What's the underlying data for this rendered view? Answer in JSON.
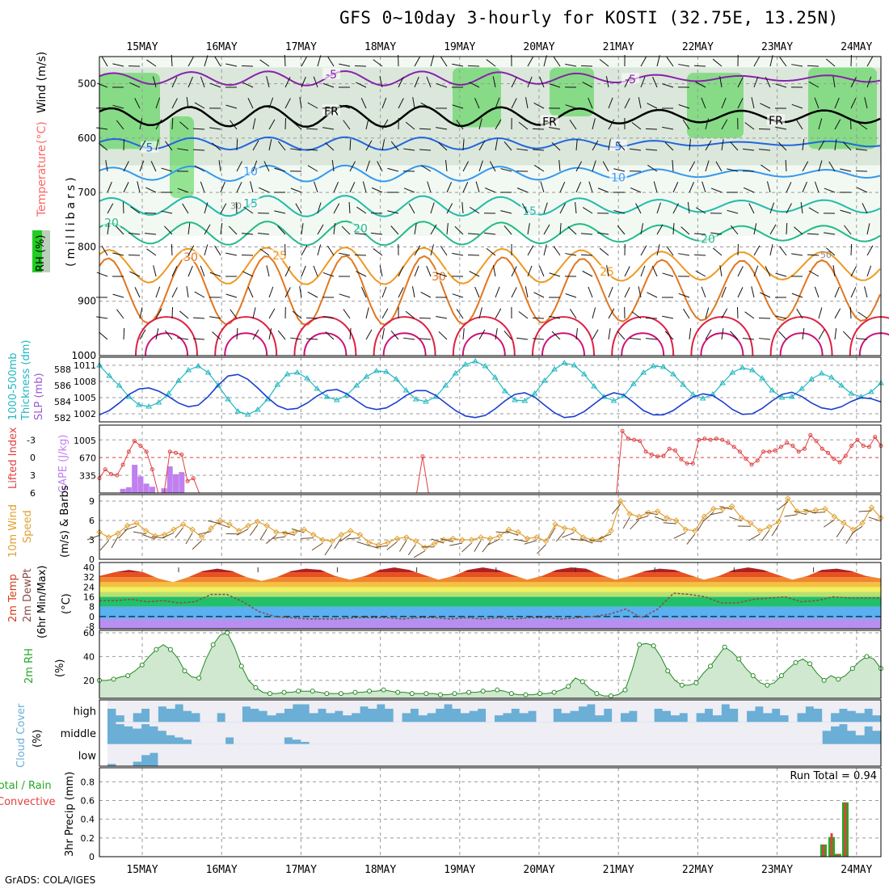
{
  "title": "GFS 0~10day 3-hourly for KOSTI (32.75E, 13.25N)",
  "credit": "GrADS: COLA/IGES",
  "run_total_label": "Run Total = 0.94",
  "dates": [
    "15MAY",
    "16MAY",
    "17MAY",
    "18MAY",
    "19MAY",
    "20MAY",
    "21MAY",
    "22MAY",
    "23MAY",
    "24MAY"
  ],
  "colors": {
    "grid": "#9a9a9a",
    "rh_green": "#22cc22",
    "thickness": "#22b8c0",
    "slp": "#1a3fd0",
    "lifted": "#e04040",
    "cape": "#c080f0",
    "wind_speed": "#e0a030",
    "cloud": "#6baed6",
    "precip_total": "#22aa22",
    "precip_conv": "#e04040"
  },
  "panel_labels": {
    "upper": {
      "rh": "RH (%)",
      "temp": "Temperature",
      "tempunit": "(°C)",
      "wind": "Wind (m/s)",
      "mb": "(millibars)"
    },
    "slp": {
      "a": "1000-500mb",
      "b": "Thickness (dm)",
      "c": "SLP (mb)"
    },
    "cape": {
      "a": "Lifted Index",
      "b": "CAPE (J/kg)"
    },
    "wind10": {
      "a": "10m Wind",
      "b": "Speed",
      "c": "(m/s) & Barbs"
    },
    "temp2m": {
      "a": "2m Temp",
      "b": "2m DewPt",
      "c": "(6hr Min/Max)",
      "unit": "(°C)"
    },
    "rh2m": {
      "a": "2m RH",
      "unit": "(%)"
    },
    "cloud": {
      "a": "Cloud Cover",
      "unit": "(%)"
    },
    "precip": {
      "a": "Total / Rain",
      "b": "Convective",
      "c": "3hr Precip (mm)"
    }
  },
  "chart_data": [
    {
      "type": "heatmap",
      "name": "upper-air cross-section",
      "y_ticks": [
        500,
        600,
        700,
        800,
        900,
        1000
      ],
      "ylim": [
        1000,
        450
      ],
      "temperature_contour_labels": [
        "-5",
        "FR",
        "5",
        "10",
        "15",
        "20",
        "25",
        "30"
      ],
      "rh_labels": [
        "30",
        "50"
      ]
    },
    {
      "type": "line",
      "name": "thickness-slp",
      "thickness_ticks": [
        582,
        584,
        586,
        588
      ],
      "slp_ticks": [
        1002,
        1005,
        1008,
        1011
      ],
      "series": [
        {
          "name": "1000-500mb Thickness (dm)",
          "values": [
            588.5,
            587.2,
            586.0,
            584.6,
            583.6,
            583.4,
            583.9,
            585.0,
            586.6,
            587.9,
            588.4,
            587.6,
            586.0,
            584.3,
            582.8,
            582.4,
            583.0,
            584.3,
            586.1,
            587.4,
            587.6,
            586.9,
            585.6,
            584.6,
            584.2,
            584.8,
            586.0,
            587.1,
            587.8,
            587.7,
            586.8,
            585.4,
            584.3,
            584.0,
            584.6,
            586.0,
            587.5,
            588.6,
            589.0,
            588.4,
            587.0,
            585.3,
            584.2,
            584.1,
            585.0,
            586.6,
            588.0,
            588.8,
            588.5,
            587.4,
            585.9,
            584.6,
            584.1,
            584.7,
            586.2,
            587.6,
            588.4,
            588.3,
            587.4,
            586.1,
            584.9,
            584.4,
            584.9,
            586.3,
            587.6,
            588.2,
            587.9,
            586.9,
            585.4,
            584.5,
            584.6,
            585.6,
            586.8,
            587.5,
            587.0,
            586.0,
            585.0,
            584.6,
            585.2,
            586.3
          ]
        },
        {
          "name": "SLP (mb)",
          "values": [
            1001.8,
            1002.6,
            1004.0,
            1005.6,
            1006.6,
            1006.8,
            1006.2,
            1005.2,
            1004.0,
            1003.3,
            1003.6,
            1005.2,
            1007.3,
            1009.0,
            1009.3,
            1008.4,
            1006.8,
            1005.0,
            1003.5,
            1002.8,
            1003.0,
            1004.0,
            1005.3,
            1006.3,
            1006.5,
            1005.7,
            1004.4,
            1003.2,
            1002.8,
            1003.1,
            1004.1,
            1005.4,
            1006.3,
            1006.3,
            1005.4,
            1004.0,
            1002.6,
            1001.6,
            1001.3,
            1001.7,
            1002.9,
            1004.4,
            1005.6,
            1005.9,
            1005.1,
            1003.6,
            1002.2,
            1001.3,
            1001.5,
            1002.4,
            1003.8,
            1005.2,
            1005.9,
            1005.5,
            1004.1,
            1002.6,
            1001.8,
            1001.8,
            1002.6,
            1003.9,
            1005.1,
            1005.7,
            1005.4,
            1004.2,
            1002.8,
            1001.9,
            1002.0,
            1003.0,
            1004.4,
            1005.6,
            1006.0,
            1005.2,
            1004.0,
            1003.1,
            1002.8,
            1003.3,
            1004.3,
            1005.0,
            1004.8,
            1004.2
          ]
        }
      ]
    },
    {
      "type": "bar",
      "name": "lifted-index-cape",
      "li_ticks": [
        -3,
        0,
        3,
        6
      ],
      "cape_ticks": [
        335,
        670,
        1005
      ],
      "series": [
        {
          "name": "Lifted Index",
          "values": [
            3.5,
            2.0,
            2.8,
            3.0,
            1.2,
            -1.0,
            -2.8,
            -2.0,
            -1.0,
            2.0,
            6,
            6,
            -1.0,
            -0.8,
            -0.5,
            4.0,
            3.5,
            6,
            6,
            6,
            6,
            6,
            6,
            6,
            6,
            6,
            6,
            6,
            6,
            6,
            6,
            6,
            6,
            6,
            6,
            6,
            6,
            6,
            6,
            6,
            6,
            6,
            6,
            6,
            6,
            6,
            6,
            6,
            6,
            6,
            6,
            6,
            6,
            6,
            6,
            -0.2,
            6,
            6,
            6,
            6,
            6,
            6,
            6,
            6,
            6,
            6,
            6,
            6,
            6,
            6,
            6,
            6,
            6,
            6,
            6,
            6,
            6,
            6,
            6,
            6,
            6,
            6,
            6,
            6,
            6,
            6,
            6,
            6,
            6,
            -4.5,
            -3.2,
            -3.0,
            -2.8,
            -1.0,
            -0.5,
            -0.2,
            -0.3,
            -1.5,
            -1.2,
            0.3,
            1.0,
            1.0,
            -3.0,
            -3.2,
            -3.0,
            -3.2,
            -3.0,
            -2.5,
            -1.8,
            -1.0,
            0.2,
            1.2,
            0.5,
            -1.0,
            -1.0,
            -1.2,
            -1.8,
            -2.5,
            -2.0,
            -1.0,
            -1.5,
            -3.8,
            -2.8,
            -1.5,
            -0.8,
            0.2,
            0.8,
            -0.3,
            -2.0,
            -3.0,
            -2.0,
            -1.8,
            -3.5,
            -2.0
          ]
        },
        {
          "name": "CAPE (J/kg)",
          "values": [
            0,
            0,
            0,
            0,
            80,
            110,
            540,
            320,
            180,
            120,
            0,
            90,
            510,
            360,
            400,
            0,
            0,
            0,
            0,
            0,
            0,
            0,
            0,
            0,
            0,
            0,
            0,
            0,
            0,
            0,
            0,
            0,
            0,
            0,
            0,
            0,
            0,
            0,
            0,
            0,
            0,
            0,
            0,
            0,
            0,
            0,
            0,
            0,
            0,
            0,
            0,
            0,
            0,
            0,
            0,
            0,
            0,
            0,
            0,
            0,
            0,
            0,
            0,
            0,
            0,
            0,
            0,
            0,
            0,
            0,
            0,
            0,
            0,
            0,
            0,
            0,
            0,
            0,
            0,
            0,
            0,
            0,
            0,
            0,
            0,
            0,
            0,
            0,
            0,
            0,
            0,
            0,
            0,
            0,
            0,
            0,
            0,
            0,
            0,
            0,
            0,
            0,
            0,
            0,
            0,
            0,
            0,
            0,
            0,
            0,
            0,
            0,
            0,
            0,
            0,
            0,
            0,
            0,
            0,
            0,
            0,
            0,
            0,
            0,
            0,
            0,
            0,
            0,
            0,
            0,
            0,
            0,
            0,
            0,
            0,
            0,
            0,
            0
          ]
        }
      ]
    },
    {
      "type": "line",
      "name": "10m-wind-speed",
      "y_ticks": [
        0,
        3,
        6,
        9
      ],
      "values": [
        4.2,
        3.4,
        4.0,
        5.2,
        5.6,
        4.4,
        3.6,
        3.8,
        4.6,
        5.4,
        4.6,
        3.4,
        4.8,
        6.0,
        5.4,
        4.4,
        5.2,
        5.8,
        5.2,
        4.2,
        4.0,
        4.2,
        4.6,
        3.8,
        3.0,
        2.8,
        3.8,
        4.4,
        3.8,
        2.6,
        2.2,
        2.6,
        3.2,
        3.4,
        2.8,
        1.8,
        2.4,
        3.0,
        3.2,
        3.0,
        3.0,
        3.4,
        3.2,
        3.6,
        4.6,
        4.2,
        3.2,
        3.4,
        2.8,
        5.4,
        4.8,
        4.6,
        3.4,
        3.0,
        3.2,
        4.4,
        9.0,
        7.0,
        6.6,
        7.2,
        7.4,
        6.4,
        6.0,
        4.6,
        4.4,
        6.6,
        7.8,
        7.8,
        8.2,
        6.4,
        5.6,
        4.4,
        5.0,
        5.8,
        9.4,
        7.4,
        7.4,
        7.6,
        7.8,
        6.6,
        5.6,
        4.6,
        5.6,
        8.0,
        6.4
      ]
    },
    {
      "type": "area",
      "name": "2m-temperature",
      "y_ticks": [
        -8,
        0,
        8,
        16,
        24,
        32,
        40
      ],
      "max_values": [
        33,
        36,
        38,
        36,
        31,
        28,
        32,
        37,
        39,
        37,
        32,
        29,
        32,
        37,
        39,
        38,
        33,
        30,
        33,
        38,
        40,
        38,
        34,
        30,
        33,
        38,
        40,
        38,
        34,
        30,
        33,
        38,
        40,
        39,
        34,
        30,
        33,
        37,
        39,
        38,
        34,
        30,
        33,
        38,
        40,
        38,
        34,
        30,
        33,
        38,
        39,
        37,
        33,
        31
      ],
      "dewpt_values": [
        13,
        13,
        14,
        12,
        13,
        11,
        12,
        18,
        18,
        12,
        4,
        0,
        -1,
        -2,
        -2,
        -2,
        -1,
        -1,
        -1,
        -2,
        -1,
        -1,
        -2,
        -1,
        -2,
        -1,
        -2,
        -1,
        -1,
        -2,
        -1,
        0,
        2,
        6,
        -1,
        6,
        19,
        18,
        16,
        11,
        11,
        14,
        15,
        16,
        12,
        13,
        16,
        15,
        15,
        15
      ]
    },
    {
      "type": "area",
      "name": "2m-rh",
      "y_ticks": [
        20,
        40,
        60
      ],
      "values": [
        20,
        20,
        21,
        23,
        24,
        28,
        33,
        40,
        46,
        50,
        46,
        39,
        28,
        23,
        22,
        38,
        50,
        58,
        60,
        48,
        32,
        20,
        14,
        10,
        9,
        9,
        10,
        10,
        11,
        11,
        11,
        10,
        9,
        9,
        9,
        9,
        10,
        10,
        11,
        11,
        12,
        11,
        10,
        10,
        9,
        9,
        9,
        9,
        8,
        8,
        9,
        9,
        10,
        10,
        11,
        11,
        12,
        11,
        9,
        8,
        8,
        8,
        9,
        9,
        10,
        12,
        15,
        22,
        19,
        13,
        9,
        7,
        7,
        8,
        12,
        29,
        50,
        51,
        49,
        40,
        28,
        20,
        16,
        16,
        18,
        26,
        32,
        40,
        48,
        44,
        38,
        30,
        24,
        18,
        16,
        18,
        24,
        30,
        35,
        38,
        34,
        26,
        20,
        24,
        21,
        24,
        30,
        36,
        40,
        38,
        30
      ]
    },
    {
      "type": "heatmap",
      "name": "cloud-cover",
      "y_labels": [
        "high",
        "middle",
        "low"
      ],
      "high_values": [
        60,
        30,
        0,
        40,
        60,
        0,
        70,
        60,
        80,
        50,
        40,
        0,
        0,
        40,
        0,
        0,
        70,
        60,
        50,
        30,
        40,
        60,
        80,
        80,
        40,
        60,
        40,
        50,
        30,
        40,
        70,
        60,
        80,
        60,
        0,
        40,
        60,
        30,
        40,
        60,
        80,
        60,
        40,
        50,
        60,
        0,
        30,
        40,
        60,
        40,
        50,
        0,
        0,
        60,
        40,
        50,
        70,
        80,
        30,
        60,
        0,
        40,
        50,
        0,
        0,
        60,
        50,
        30,
        40,
        0,
        40,
        60,
        30,
        80,
        60,
        0,
        50,
        70,
        40,
        60,
        30,
        0,
        40,
        70,
        60,
        0,
        40,
        60,
        50,
        40,
        60,
        30
      ],
      "mid_values": [
        100,
        90,
        80,
        70,
        90,
        80,
        60,
        40,
        30,
        20,
        0,
        0,
        0,
        0,
        30,
        0,
        0,
        0,
        0,
        0,
        0,
        30,
        20,
        10,
        0,
        0,
        0,
        0,
        0,
        0,
        0,
        0,
        0,
        0,
        0,
        0,
        0,
        0,
        0,
        0,
        0,
        0,
        0,
        0,
        0,
        0,
        0,
        0,
        0,
        0,
        0,
        0,
        0,
        0,
        0,
        0,
        0,
        0,
        0,
        0,
        0,
        0,
        0,
        0,
        0,
        0,
        0,
        0,
        0,
        0,
        0,
        0,
        0,
        0,
        0,
        0,
        0,
        0,
        0,
        0,
        0,
        0,
        0,
        0,
        0,
        60,
        80,
        90,
        60,
        40,
        80,
        60
      ],
      "low_values": [
        10,
        0,
        0,
        20,
        50,
        60,
        0,
        0,
        0,
        0,
        0,
        0,
        0,
        0,
        0,
        0,
        0,
        0,
        0,
        0,
        0,
        0,
        0,
        0,
        0,
        0,
        0,
        0,
        0,
        0,
        0,
        0,
        0,
        0,
        0,
        0,
        0,
        0,
        0,
        0,
        0,
        0,
        0,
        0,
        0,
        0,
        0,
        0,
        0,
        0,
        0,
        0,
        0,
        0,
        0,
        0,
        0,
        0,
        0,
        0,
        0,
        0,
        0,
        0,
        0,
        0,
        0,
        0,
        0,
        0,
        0,
        0,
        0,
        0,
        0,
        0,
        0,
        0,
        0,
        0,
        0,
        0,
        0,
        0,
        0,
        0,
        0,
        0,
        0,
        0,
        0,
        0
      ]
    },
    {
      "type": "bar",
      "name": "3hr-precip",
      "y_ticks": [
        0,
        0.2,
        0.4,
        0.6,
        0.8
      ],
      "ylim": [
        0,
        0.95
      ],
      "total_values": [
        0.13,
        0.21,
        0.03,
        0.58
      ],
      "convective_values": [
        0.13,
        0.25,
        0.03,
        0.58
      ],
      "bar_times_hours": [
        222,
        225,
        228,
        231
      ]
    }
  ]
}
